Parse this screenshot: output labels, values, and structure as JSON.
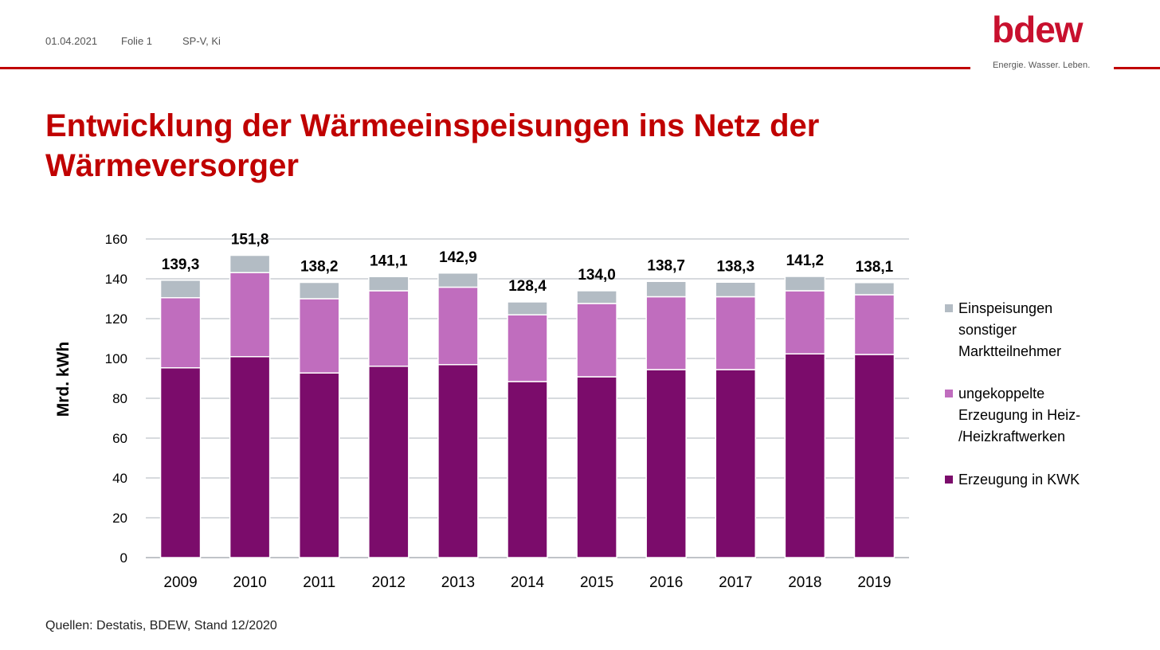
{
  "header": {
    "date": "01.04.2021",
    "slide": "Folie 1",
    "author": "SP-V, Ki",
    "logo_word": "bdew",
    "logo_tagline": "Energie. Wasser. Leben."
  },
  "title": "Entwicklung der Wärmeeinspeisungen ins Netz der Wärmeversorger",
  "source": "Quellen: Destatis, BDEW, Stand 12/2020",
  "colors": {
    "accent": "#c00000",
    "kwk": "#7b0c6b",
    "ungekoppelt": "#c06dbe",
    "sonstige": "#b3bcc4",
    "grid": "#bfc4ca"
  },
  "chart_data": {
    "type": "bar",
    "stacked": true,
    "categories": [
      "2009",
      "2010",
      "2011",
      "2012",
      "2013",
      "2014",
      "2015",
      "2016",
      "2017",
      "2018",
      "2019"
    ],
    "series": [
      {
        "name": "Erzeugung in KWK",
        "values": [
          95.3,
          100.9,
          92.7,
          96.1,
          96.9,
          88.4,
          90.8,
          94.4,
          94.4,
          102.3,
          102.0
        ],
        "color": "#7b0c6b"
      },
      {
        "name": "ungekoppelte Erzeugung in Heiz-/Heizkraftwerken",
        "values": [
          35.2,
          42.2,
          37.3,
          37.9,
          38.9,
          33.5,
          36.8,
          36.6,
          36.6,
          31.7,
          30.0
        ],
        "color": "#c06dbe"
      },
      {
        "name": "Einspeisungen sonstiger Marktteilnehmer",
        "values": [
          8.8,
          8.7,
          8.2,
          7.1,
          7.1,
          6.5,
          6.4,
          7.7,
          7.3,
          7.2,
          6.1
        ],
        "color": "#b3bcc4"
      }
    ],
    "totals": [
      "139,3",
      "151,8",
      "138,2",
      "141,1",
      "142,9",
      "128,4",
      "134,0",
      "138,7",
      "138,3",
      "141,2",
      "138,1"
    ],
    "ylabel": "Mrd. kWh",
    "ylim": [
      0,
      160
    ],
    "yticks": [
      0,
      20,
      40,
      60,
      80,
      100,
      120,
      140,
      160
    ],
    "legend": {
      "placement": "right",
      "entries": [
        {
          "lines": [
            "Einspeisungen",
            "sonstiger",
            "Marktteilnehmer"
          ],
          "color": "#b3bcc4"
        },
        {
          "lines": [
            "ungekoppelte",
            "Erzeugung in Heiz-",
            "/Heizkraftwerken"
          ],
          "color": "#c06dbe"
        },
        {
          "lines": [
            "Erzeugung in KWK"
          ],
          "color": "#7b0c6b"
        }
      ]
    },
    "grid": true
  }
}
